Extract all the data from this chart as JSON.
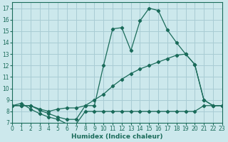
{
  "xlabel": "Humidex (Indice chaleur)",
  "bg_color": "#cce8ec",
  "grid_color": "#a8ccd4",
  "line_color": "#1a6b5a",
  "xlim": [
    0,
    23
  ],
  "ylim": [
    7,
    17.5
  ],
  "xticks": [
    0,
    1,
    2,
    3,
    4,
    5,
    6,
    7,
    8,
    9,
    10,
    11,
    12,
    13,
    14,
    15,
    16,
    17,
    18,
    19,
    20,
    21,
    22,
    23
  ],
  "yticks": [
    7,
    8,
    9,
    10,
    11,
    12,
    13,
    14,
    15,
    16,
    17
  ],
  "curve_peak_x": [
    0,
    1,
    2,
    3,
    4,
    5,
    6,
    7,
    8,
    9,
    10,
    11,
    12,
    13,
    14,
    15,
    16,
    17,
    18,
    19,
    20,
    21,
    22,
    23
  ],
  "curve_peak_y": [
    8.5,
    8.5,
    8.5,
    8.1,
    7.8,
    7.5,
    7.3,
    7.3,
    8.5,
    8.5,
    12.0,
    15.2,
    15.3,
    13.3,
    15.9,
    17.0,
    16.8,
    15.1,
    14.0,
    13.0,
    12.1,
    9.0,
    8.5,
    8.5
  ],
  "curve_diag_x": [
    0,
    1,
    2,
    3,
    4,
    5,
    6,
    7,
    8,
    9,
    10,
    11,
    12,
    13,
    14,
    15,
    16,
    17,
    18,
    19,
    20,
    21,
    22,
    23
  ],
  "curve_diag_y": [
    8.5,
    8.5,
    8.5,
    8.2,
    8.0,
    8.2,
    8.3,
    8.3,
    8.5,
    9.0,
    9.5,
    10.2,
    10.8,
    11.3,
    11.7,
    12.0,
    12.3,
    12.6,
    12.9,
    13.0,
    12.1,
    9.0,
    8.5,
    8.5
  ],
  "curve_flat_x": [
    0,
    1,
    2,
    3,
    4,
    5,
    6,
    7,
    8,
    9,
    10,
    11,
    12,
    13,
    14,
    15,
    16,
    17,
    18,
    19,
    20,
    21,
    22,
    23
  ],
  "curve_flat_y": [
    8.5,
    8.7,
    8.2,
    7.8,
    7.5,
    7.3,
    6.9,
    6.9,
    8.0,
    8.0,
    8.0,
    8.0,
    8.0,
    8.0,
    8.0,
    8.0,
    8.0,
    8.0,
    8.0,
    8.0,
    8.0,
    8.5,
    8.5,
    8.5
  ]
}
